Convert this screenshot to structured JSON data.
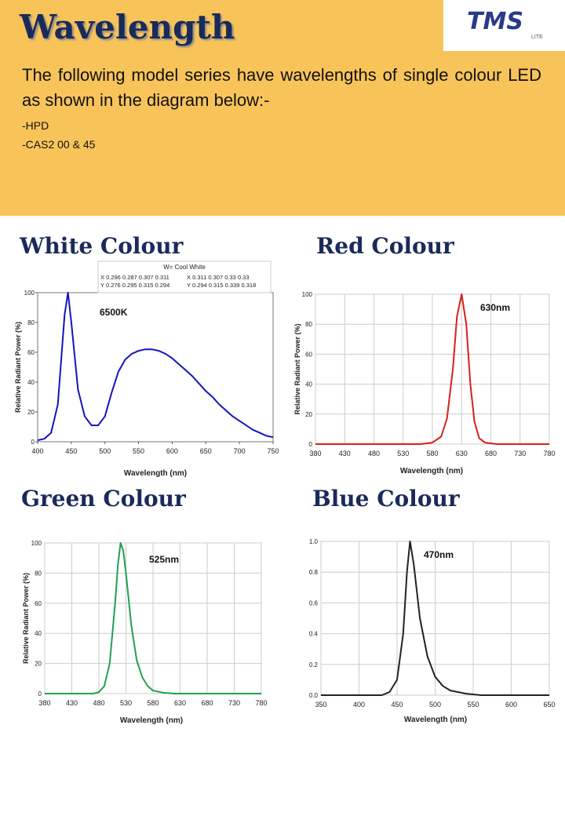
{
  "header": {
    "title": "Wavelength",
    "intro": "The following model series have wavelengths of single colour LED as shown in the diagram below:-",
    "models": [
      "-HPD",
      "-CAS2 00 & 45"
    ]
  },
  "logo": {
    "text": "TMS",
    "sub": "LITE"
  },
  "chart_data": [
    {
      "type": "line",
      "title": "White Colour",
      "xlabel": "Wavelength (nm)",
      "ylabel": "Relative Radiant Power (%)",
      "annotation": "6500K",
      "legend_box": {
        "title": "W= Cool White",
        "rows": [
          "X 0.296 0.287 0.307 0.311",
          "Y 0.276 0.295 0.315 0.294",
          "X 0.311 0.307 0.33 0.33",
          "Y 0.294 0.315 0.339 0.318"
        ]
      },
      "xlim": [
        400,
        750
      ],
      "xticks": [
        400,
        450,
        500,
        550,
        600,
        650,
        700,
        750
      ],
      "ylim": [
        0,
        100
      ],
      "yticks": [
        0,
        20,
        40,
        60,
        80,
        100
      ],
      "grid": false,
      "series": [
        {
          "color": "#1414c0",
          "x": [
            400,
            410,
            420,
            430,
            440,
            445,
            450,
            460,
            470,
            480,
            490,
            500,
            510,
            520,
            530,
            540,
            550,
            560,
            570,
            580,
            590,
            600,
            610,
            620,
            630,
            640,
            650,
            660,
            670,
            680,
            690,
            700,
            710,
            720,
            730,
            740,
            750
          ],
          "values": [
            1,
            2,
            6,
            25,
            85,
            100,
            80,
            35,
            17,
            11,
            11,
            17,
            33,
            47,
            55,
            59,
            61,
            62,
            62,
            61,
            59,
            56,
            52,
            48,
            44,
            39,
            34,
            30,
            25,
            21,
            17,
            14,
            11,
            8,
            6,
            4,
            3
          ]
        }
      ]
    },
    {
      "type": "line",
      "title": "Red Colour",
      "xlabel": "Wavelength (nm)",
      "ylabel": "Relative Radiant Power (%)",
      "annotation": "630nm",
      "xlim": [
        380,
        780
      ],
      "xticks": [
        380,
        430,
        480,
        530,
        580,
        630,
        680,
        730,
        780
      ],
      "ylim": [
        0,
        100
      ],
      "yticks": [
        0,
        20,
        40,
        60,
        80,
        100
      ],
      "grid": true,
      "series": [
        {
          "color": "#d42020",
          "x": [
            380,
            560,
            580,
            595,
            605,
            615,
            622,
            630,
            638,
            645,
            652,
            660,
            670,
            690,
            780
          ],
          "values": [
            0,
            0,
            1,
            5,
            17,
            50,
            85,
            100,
            80,
            40,
            15,
            4,
            1,
            0,
            0
          ]
        }
      ]
    },
    {
      "type": "line",
      "title": "Green Colour",
      "xlabel": "Wavelength (nm)",
      "ylabel": "Relative Radiant Power (%)",
      "annotation": "525nm",
      "xlim": [
        380,
        780
      ],
      "xticks": [
        380,
        430,
        480,
        530,
        580,
        630,
        680,
        730,
        780
      ],
      "ylim": [
        0,
        100
      ],
      "yticks": [
        0,
        20,
        40,
        60,
        80,
        100
      ],
      "grid": true,
      "series": [
        {
          "color": "#22a050",
          "x": [
            380,
            470,
            480,
            490,
            500,
            510,
            515,
            520,
            525,
            530,
            540,
            550,
            560,
            570,
            580,
            600,
            620,
            780
          ],
          "values": [
            0,
            0,
            1,
            5,
            20,
            60,
            85,
            100,
            95,
            80,
            45,
            22,
            11,
            5,
            2,
            0.5,
            0,
            0
          ]
        }
      ]
    },
    {
      "type": "line",
      "title": "Blue Colour",
      "xlabel": "Wavelength (nm)",
      "annotation": "470nm",
      "xlim": [
        350,
        650
      ],
      "xticks": [
        350,
        400,
        450,
        500,
        550,
        600,
        650
      ],
      "ylim": [
        0,
        1
      ],
      "yticks": [
        {
          "value": 0,
          "label": "0.0"
        },
        0.2,
        0.4,
        0.6,
        0.8,
        {
          "value": 1,
          "label": "1.0"
        }
      ],
      "grid": true,
      "series": [
        {
          "color": "#222222",
          "x": [
            350,
            430,
            440,
            450,
            458,
            463,
            467,
            472,
            480,
            490,
            500,
            510,
            520,
            540,
            560,
            650
          ],
          "values": [
            0,
            0,
            0.02,
            0.1,
            0.4,
            0.8,
            1,
            0.85,
            0.5,
            0.25,
            0.12,
            0.06,
            0.03,
            0.01,
            0,
            0
          ]
        }
      ]
    }
  ]
}
